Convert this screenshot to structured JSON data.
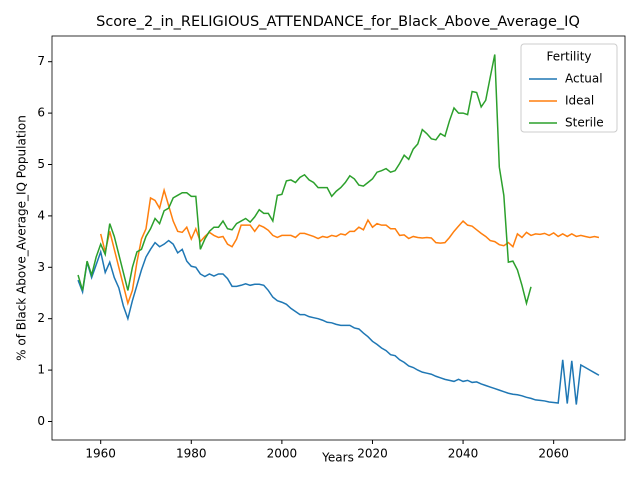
{
  "chart_data": {
    "type": "line",
    "title": "Score_2_in_RELIGIOUS_ATTENDANCE_for_Black_Above_Average_IQ",
    "xlabel": "Years",
    "ylabel": "% of Black Above_Average_IQ Population",
    "x": [
      1955,
      1956,
      1957,
      1958,
      1959,
      1960,
      1961,
      1962,
      1963,
      1964,
      1965,
      1966,
      1967,
      1968,
      1969,
      1970,
      1971,
      1972,
      1973,
      1974,
      1975,
      1976,
      1977,
      1978,
      1979,
      1980,
      1981,
      1982,
      1983,
      1984,
      1985,
      1986,
      1987,
      1988,
      1989,
      1990,
      1991,
      1992,
      1993,
      1994,
      1995,
      1996,
      1997,
      1998,
      1999,
      2000,
      2001,
      2002,
      2003,
      2004,
      2005,
      2006,
      2007,
      2008,
      2009,
      2010,
      2011,
      2012,
      2013,
      2014,
      2015,
      2016,
      2017,
      2018,
      2019,
      2020,
      2021,
      2022,
      2023,
      2024,
      2025,
      2026,
      2027,
      2028,
      2029,
      2030,
      2031,
      2032,
      2033,
      2034,
      2035,
      2036,
      2037,
      2038,
      2039,
      2040,
      2041,
      2042,
      2043,
      2044,
      2045,
      2046,
      2047,
      2048,
      2049,
      2050,
      2051,
      2052,
      2053,
      2054,
      2055,
      2056,
      2057,
      2058,
      2059,
      2060,
      2061,
      2062,
      2063,
      2064,
      2065,
      2066,
      2067,
      2068,
      2069,
      2070
    ],
    "series": [
      {
        "name": "Actual",
        "color": "#1f77b4",
        "values": [
          2.75,
          2.52,
          3.1,
          2.8,
          3.05,
          3.3,
          2.9,
          3.1,
          2.8,
          2.6,
          2.25,
          2.0,
          2.35,
          2.65,
          2.95,
          3.2,
          3.35,
          3.48,
          3.4,
          3.45,
          3.52,
          3.45,
          3.28,
          3.35,
          3.12,
          3.02,
          3.0,
          2.87,
          2.82,
          2.87,
          2.83,
          2.87,
          2.87,
          2.78,
          2.63,
          2.63,
          2.65,
          2.68,
          2.65,
          2.67,
          2.67,
          2.65,
          2.55,
          2.42,
          2.35,
          2.32,
          2.28,
          2.2,
          2.14,
          2.08,
          2.08,
          2.04,
          2.02,
          2.0,
          1.97,
          1.93,
          1.92,
          1.89,
          1.87,
          1.87,
          1.87,
          1.82,
          1.8,
          1.72,
          1.65,
          1.56,
          1.5,
          1.43,
          1.38,
          1.3,
          1.28,
          1.2,
          1.15,
          1.08,
          1.05,
          1.0,
          0.96,
          0.94,
          0.92,
          0.88,
          0.85,
          0.82,
          0.8,
          0.78,
          0.82,
          0.78,
          0.8,
          0.76,
          0.77,
          0.73,
          0.7,
          0.67,
          0.64,
          0.61,
          0.58,
          0.55,
          0.53,
          0.52,
          0.5,
          0.47,
          0.45,
          0.42,
          0.41,
          0.4,
          0.38,
          0.37,
          0.36,
          1.2,
          0.35,
          1.18,
          0.33,
          1.1,
          1.05,
          1.0,
          0.95,
          0.9
        ]
      },
      {
        "name": "Ideal",
        "color": "#ff7f0e",
        "values": [
          null,
          null,
          null,
          null,
          null,
          3.65,
          3.3,
          3.7,
          3.35,
          3.0,
          2.65,
          2.3,
          2.55,
          3.1,
          3.55,
          3.75,
          4.35,
          4.3,
          4.15,
          4.5,
          4.2,
          3.9,
          3.7,
          3.68,
          3.78,
          3.55,
          3.75,
          3.5,
          3.6,
          3.68,
          3.62,
          3.58,
          3.6,
          3.45,
          3.4,
          3.55,
          3.82,
          3.82,
          3.82,
          3.7,
          3.82,
          3.78,
          3.72,
          3.62,
          3.58,
          3.62,
          3.62,
          3.62,
          3.58,
          3.66,
          3.66,
          3.63,
          3.6,
          3.56,
          3.6,
          3.58,
          3.62,
          3.6,
          3.65,
          3.63,
          3.7,
          3.7,
          3.78,
          3.73,
          3.92,
          3.78,
          3.85,
          3.82,
          3.82,
          3.75,
          3.75,
          3.62,
          3.63,
          3.56,
          3.6,
          3.58,
          3.57,
          3.58,
          3.57,
          3.48,
          3.47,
          3.48,
          3.58,
          3.7,
          3.8,
          3.9,
          3.82,
          3.8,
          3.73,
          3.66,
          3.6,
          3.52,
          3.5,
          3.44,
          3.42,
          3.48,
          3.4,
          3.65,
          3.58,
          3.68,
          3.62,
          3.65,
          3.64,
          3.66,
          3.62,
          3.67,
          3.6,
          3.65,
          3.6,
          3.65,
          3.6,
          3.62,
          3.6,
          3.58,
          3.6,
          3.58
        ]
      },
      {
        "name": "Sterile",
        "color": "#2ca02c",
        "values": [
          2.85,
          2.55,
          3.12,
          2.85,
          3.2,
          3.45,
          3.25,
          3.85,
          3.6,
          3.25,
          2.9,
          2.55,
          3.0,
          3.3,
          3.35,
          3.6,
          3.75,
          3.95,
          3.85,
          4.1,
          4.15,
          4.35,
          4.4,
          4.45,
          4.45,
          4.38,
          4.38,
          3.35,
          3.55,
          3.7,
          3.78,
          3.78,
          3.9,
          3.75,
          3.73,
          3.85,
          3.9,
          3.95,
          3.88,
          3.98,
          4.12,
          4.05,
          4.05,
          3.9,
          4.4,
          4.42,
          4.68,
          4.7,
          4.65,
          4.75,
          4.8,
          4.7,
          4.65,
          4.55,
          4.55,
          4.55,
          4.38,
          4.48,
          4.55,
          4.65,
          4.78,
          4.72,
          4.6,
          4.58,
          4.65,
          4.72,
          4.85,
          4.88,
          4.92,
          4.85,
          4.88,
          5.02,
          5.18,
          5.1,
          5.3,
          5.4,
          5.68,
          5.6,
          5.5,
          5.48,
          5.6,
          5.55,
          5.85,
          6.1,
          6.0,
          6.0,
          5.97,
          6.42,
          6.4,
          6.12,
          6.25,
          6.7,
          7.14,
          4.95,
          4.4,
          3.1,
          3.12,
          2.95,
          2.65,
          2.3,
          2.62,
          null,
          null,
          null,
          null,
          null,
          null,
          null,
          null,
          null,
          null,
          null,
          null,
          null,
          null,
          null
        ]
      }
    ],
    "xlim": [
      1949.25,
      2075.75
    ],
    "xticks": [
      1960,
      1980,
      2000,
      2020,
      2040,
      2060
    ],
    "ylim": [
      -0.36,
      7.5
    ],
    "yticks": [
      0,
      1,
      2,
      3,
      4,
      5,
      6,
      7
    ],
    "legend": {
      "title": "Fertility",
      "loc": "upper right"
    }
  }
}
